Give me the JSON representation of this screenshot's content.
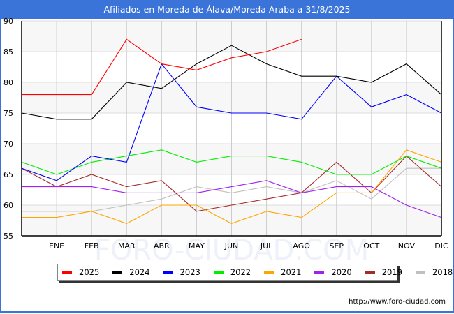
{
  "header": {
    "title": "Afiliados en Moreda de Álava/Moreda Araba a 31/8/2025"
  },
  "footer": {
    "url": "http://www.foro-ciudad.com"
  },
  "watermark": "FORO-CIUDAD.COM",
  "colors": {
    "title_bar": "#3a74d8",
    "band": "#f7f7f7",
    "grid": "#cccccc"
  },
  "chart_data": {
    "type": "line",
    "title": "Afiliados en Moreda de Álava/Moreda Araba a 31/8/2025",
    "xlabel": "",
    "ylabel": "",
    "ylim": [
      55,
      90
    ],
    "yticks": [
      55,
      60,
      65,
      70,
      75,
      80,
      85,
      90
    ],
    "categories": [
      "",
      "ENE",
      "FEB",
      "MAR",
      "ABR",
      "MAY",
      "JUN",
      "JUL",
      "AGO",
      "SEP",
      "OCT",
      "NOV",
      "DIC"
    ],
    "grid": true,
    "legend_position": "bottom",
    "series": [
      {
        "name": "2025",
        "color": "#ff0000",
        "values": [
          78,
          78,
          78,
          87,
          83,
          82,
          84,
          85,
          87,
          null,
          null,
          null,
          null
        ]
      },
      {
        "name": "2024",
        "color": "#000000",
        "values": [
          75,
          74,
          74,
          80,
          79,
          83,
          86,
          83,
          81,
          81,
          80,
          83,
          78
        ]
      },
      {
        "name": "2023",
        "color": "#0000ff",
        "values": [
          66,
          64,
          68,
          67,
          83,
          76,
          75,
          75,
          74,
          81,
          76,
          78,
          75
        ]
      },
      {
        "name": "2022",
        "color": "#00ee00",
        "values": [
          67,
          65,
          67,
          68,
          69,
          67,
          68,
          68,
          67,
          65,
          65,
          68,
          66
        ]
      },
      {
        "name": "2021",
        "color": "#ffa500",
        "values": [
          58,
          58,
          59,
          57,
          60,
          60,
          57,
          59,
          58,
          62,
          62,
          69,
          67
        ]
      },
      {
        "name": "2020",
        "color": "#a020f0",
        "values": [
          63,
          63,
          63,
          62,
          62,
          62,
          63,
          64,
          62,
          63,
          63,
          60,
          58
        ]
      },
      {
        "name": "2019",
        "color": "#a52a2a",
        "values": [
          66,
          63,
          65,
          63,
          64,
          59,
          60,
          61,
          62,
          67,
          62,
          68,
          63
        ]
      },
      {
        "name": "2018",
        "color": "#c0c0c0",
        "values": [
          59,
          59,
          59,
          60,
          61,
          63,
          62,
          63,
          62,
          64,
          61,
          66,
          66
        ]
      }
    ]
  }
}
